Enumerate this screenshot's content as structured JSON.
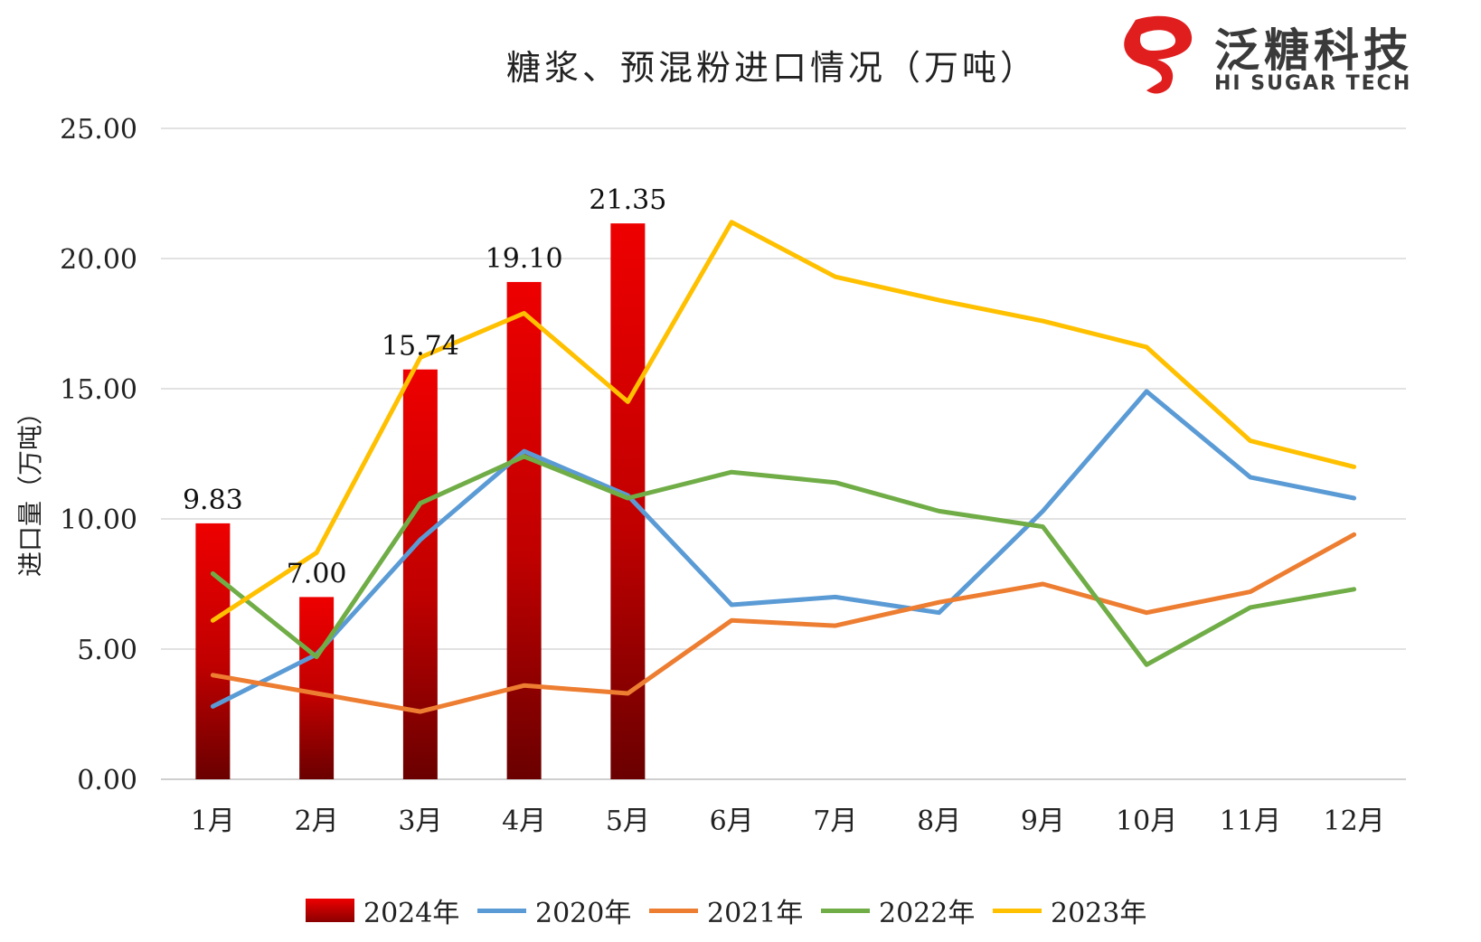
{
  "title": "糖浆、预混粉进口情况（万吨）",
  "logo": {
    "cn": "泛糖科技",
    "en": "HI SUGAR TECH",
    "brand_color": "#e01e1e"
  },
  "chart_data": {
    "type": "bar+line",
    "title": "糖浆、预混粉进口情况（万吨）",
    "ylabel": "进口量（万吨）",
    "xlabel": "",
    "ylim": [
      0,
      25
    ],
    "yticks": [
      "0.00",
      "5.00",
      "10.00",
      "15.00",
      "20.00",
      "25.00"
    ],
    "grid": true,
    "legend_position": "bottom",
    "categories": [
      "1月",
      "2月",
      "3月",
      "4月",
      "5月",
      "6月",
      "7月",
      "8月",
      "9月",
      "10月",
      "11月",
      "12月"
    ],
    "bar_series": {
      "name": "2024年",
      "color": "#e00000",
      "values": [
        9.83,
        7.0,
        15.74,
        19.1,
        21.35
      ],
      "labels": [
        "9.83",
        "7.00",
        "15.74",
        "19.10",
        "21.35"
      ]
    },
    "line_series": [
      {
        "name": "2020年",
        "color": "#5b9bd5",
        "values": [
          2.8,
          4.8,
          9.2,
          12.6,
          10.9,
          6.7,
          7.0,
          6.4,
          10.3,
          14.9,
          11.6,
          10.8
        ]
      },
      {
        "name": "2021年",
        "color": "#ed7d31",
        "values": [
          4.0,
          3.3,
          2.6,
          3.6,
          3.3,
          6.1,
          5.9,
          6.8,
          7.5,
          6.4,
          7.2,
          9.4
        ]
      },
      {
        "name": "2022年",
        "color": "#70ad47",
        "values": [
          7.9,
          4.7,
          10.6,
          12.4,
          10.8,
          11.8,
          11.4,
          10.3,
          9.7,
          4.4,
          6.6,
          7.3
        ]
      },
      {
        "name": "2023年",
        "color": "#ffc000",
        "values": [
          6.1,
          8.7,
          16.2,
          17.9,
          14.5,
          21.4,
          19.3,
          18.4,
          17.6,
          16.6,
          13.0,
          12.0
        ]
      }
    ]
  }
}
